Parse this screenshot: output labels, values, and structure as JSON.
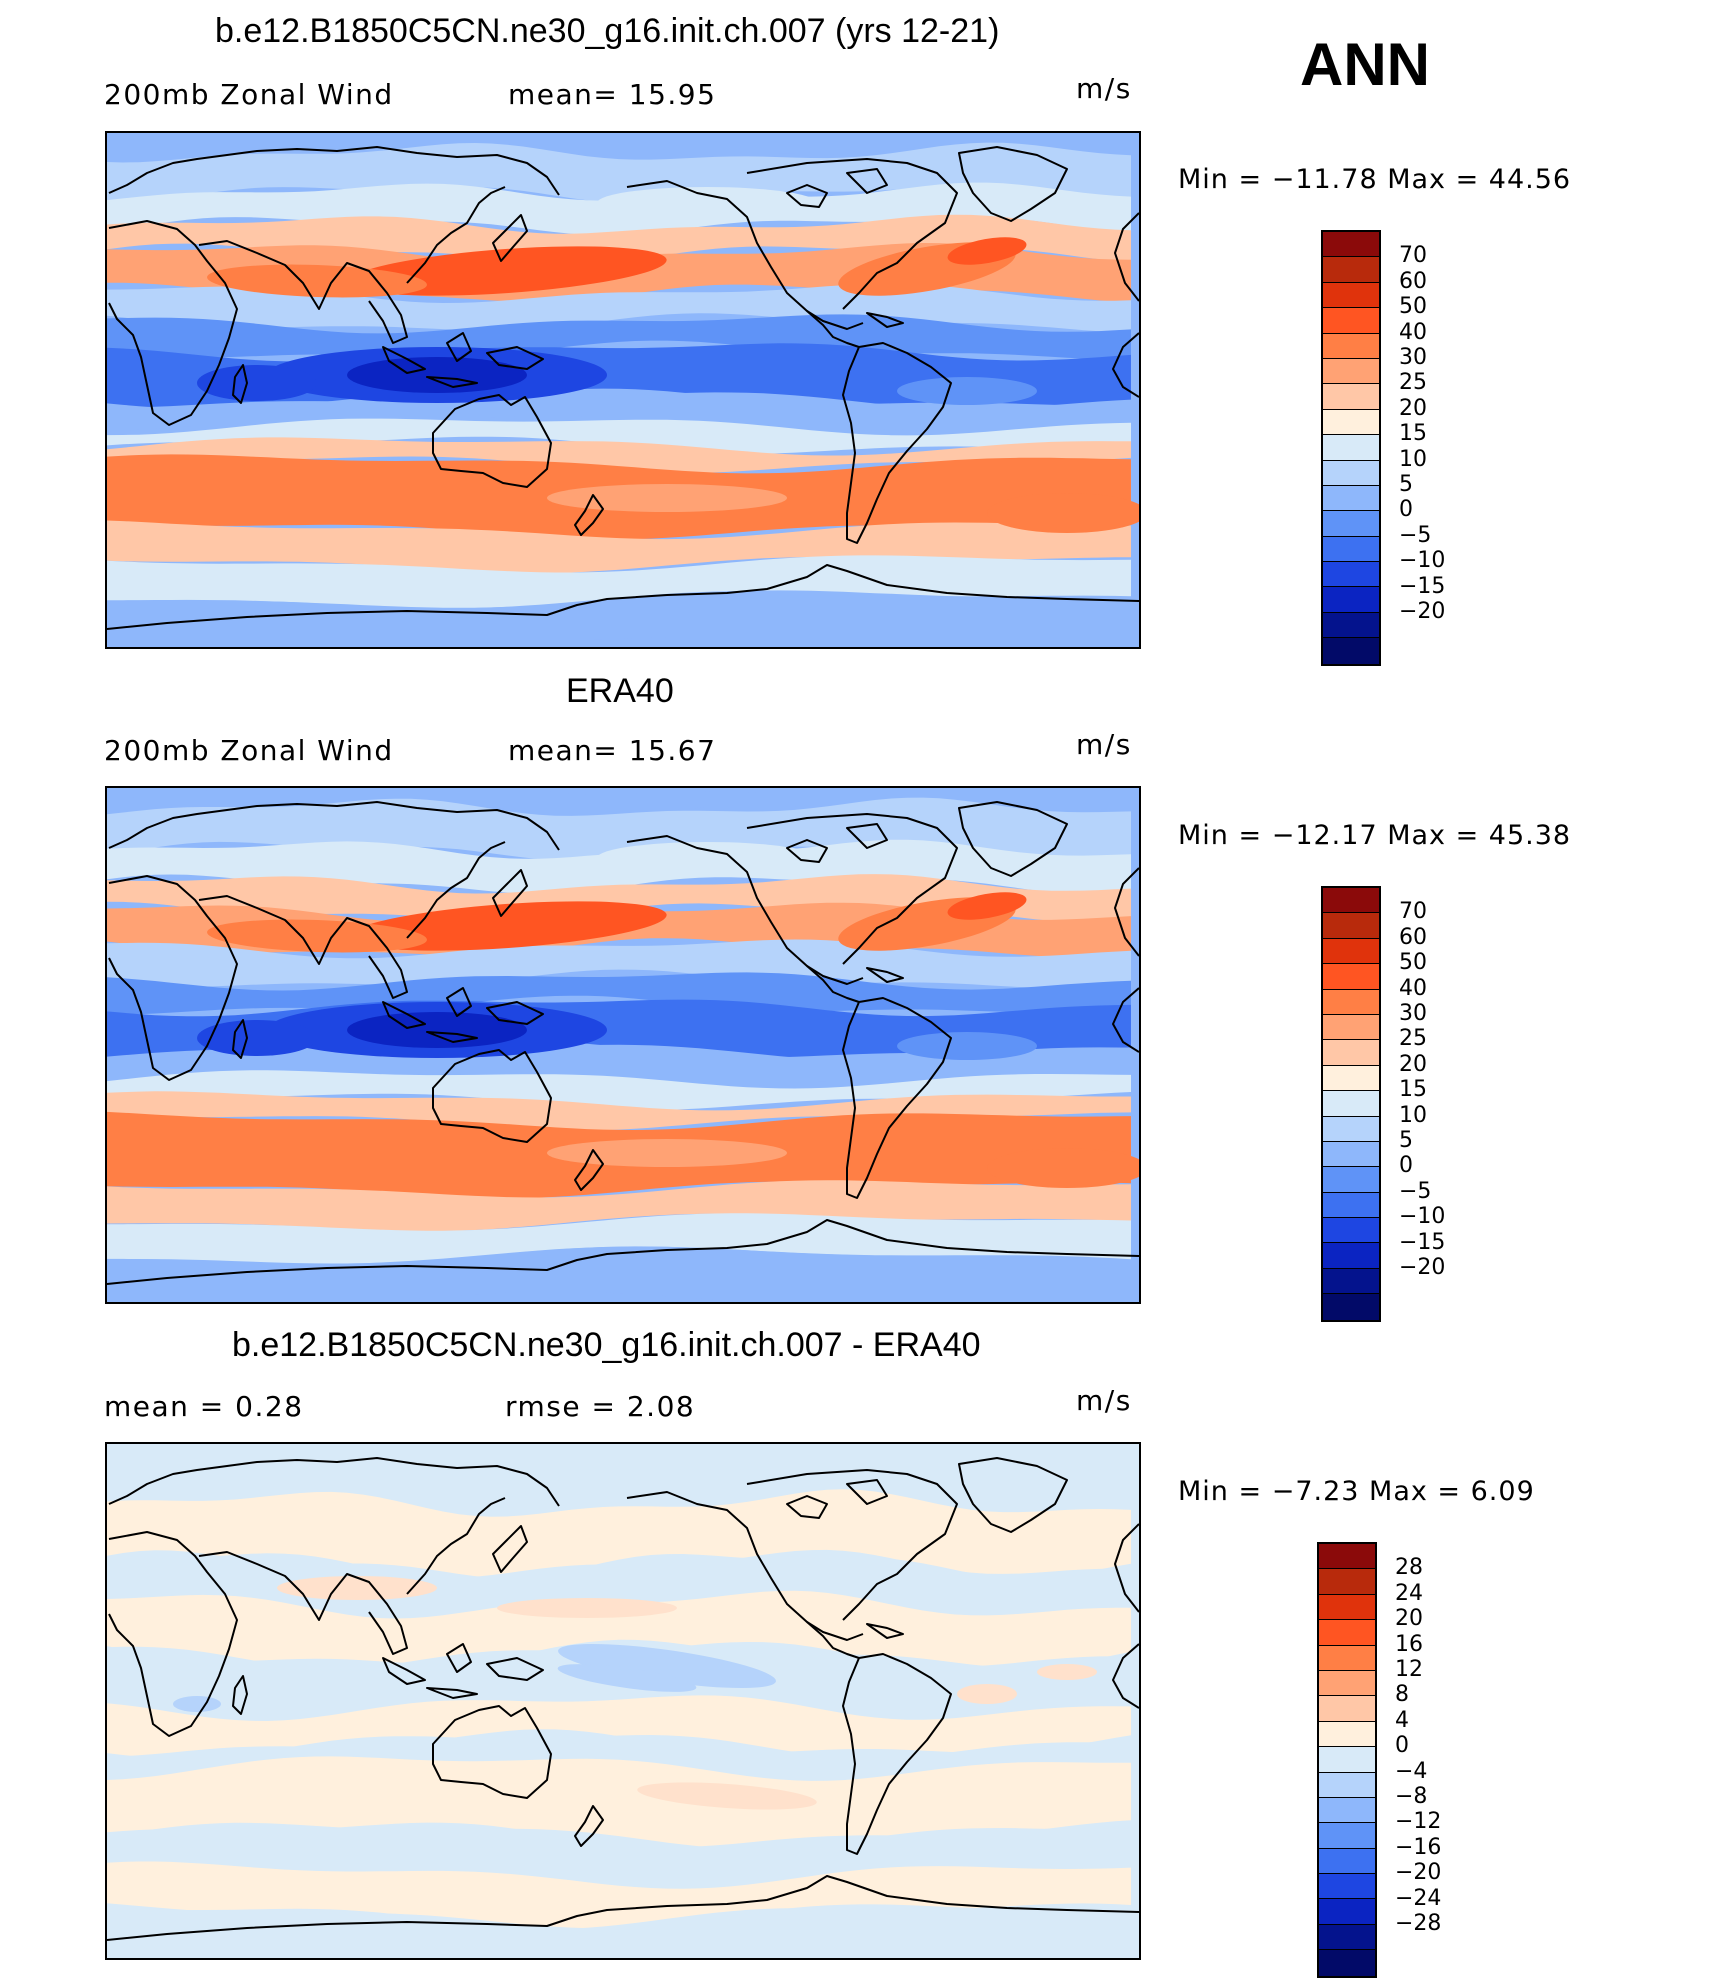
{
  "season": "ANN",
  "panels": [
    {
      "title": "b.e12.B1850C5CN.ne30_g16.init.ch.007 (yrs 12-21)",
      "left_label": "200mb Zonal Wind",
      "center_label": "mean=   15.95",
      "units": "m/s",
      "minmax": "Min  =  −11.78  Max  =    44.56",
      "map_type": "model",
      "colorbar": {
        "colors": [
          "#8b0a0a",
          "#b82a0c",
          "#e0330c",
          "#ff5522",
          "#ff7f45",
          "#ffa274",
          "#ffc7a7",
          "#fff0dd",
          "#d8eaf8",
          "#b5d3fb",
          "#8eb7fb",
          "#5f93f7",
          "#3d71f1",
          "#1e46e2",
          "#0b24c2",
          "#04138d",
          "#020a68"
        ],
        "labels": [
          "70",
          "60",
          "50",
          "40",
          "30",
          "25",
          "20",
          "15",
          "10",
          "5",
          "0",
          "−5",
          "−10",
          "−15",
          "−20"
        ]
      }
    },
    {
      "title": "ERA40",
      "left_label": "200mb Zonal Wind",
      "center_label": "mean=   15.67",
      "units": "m/s",
      "minmax": "Min  =  −12.17  Max  =    45.38",
      "map_type": "obs",
      "colorbar": {
        "colors": [
          "#8b0a0a",
          "#b82a0c",
          "#e0330c",
          "#ff5522",
          "#ff7f45",
          "#ffa274",
          "#ffc7a7",
          "#fff0dd",
          "#d8eaf8",
          "#b5d3fb",
          "#8eb7fb",
          "#5f93f7",
          "#3d71f1",
          "#1e46e2",
          "#0b24c2",
          "#04138d",
          "#020a68"
        ],
        "labels": [
          "70",
          "60",
          "50",
          "40",
          "30",
          "25",
          "20",
          "15",
          "10",
          "5",
          "0",
          "−5",
          "−10",
          "−15",
          "−20"
        ]
      }
    },
    {
      "title": "b.e12.B1850C5CN.ne30_g16.init.ch.007 - ERA40",
      "left_label": "mean  =     0.28",
      "center_label": "rmse  =     2.08",
      "units": "m/s",
      "minmax": "Min  =    −7.23  Max  =      6.09",
      "map_type": "diff",
      "colorbar": {
        "colors": [
          "#8b0a0a",
          "#b82a0c",
          "#e0330c",
          "#ff5522",
          "#ff7f45",
          "#ffa274",
          "#ffc7a7",
          "#fff0dd",
          "#d8eaf8",
          "#b5d3fb",
          "#8eb7fb",
          "#5f93f7",
          "#3d71f1",
          "#1e46e2",
          "#0b24c2",
          "#04138d",
          "#020a68"
        ],
        "labels": [
          "28",
          "24",
          "20",
          "16",
          "12",
          "8",
          "4",
          "0",
          "−4",
          "−8",
          "−12",
          "−16",
          "−20",
          "−24",
          "−28"
        ]
      }
    }
  ]
}
